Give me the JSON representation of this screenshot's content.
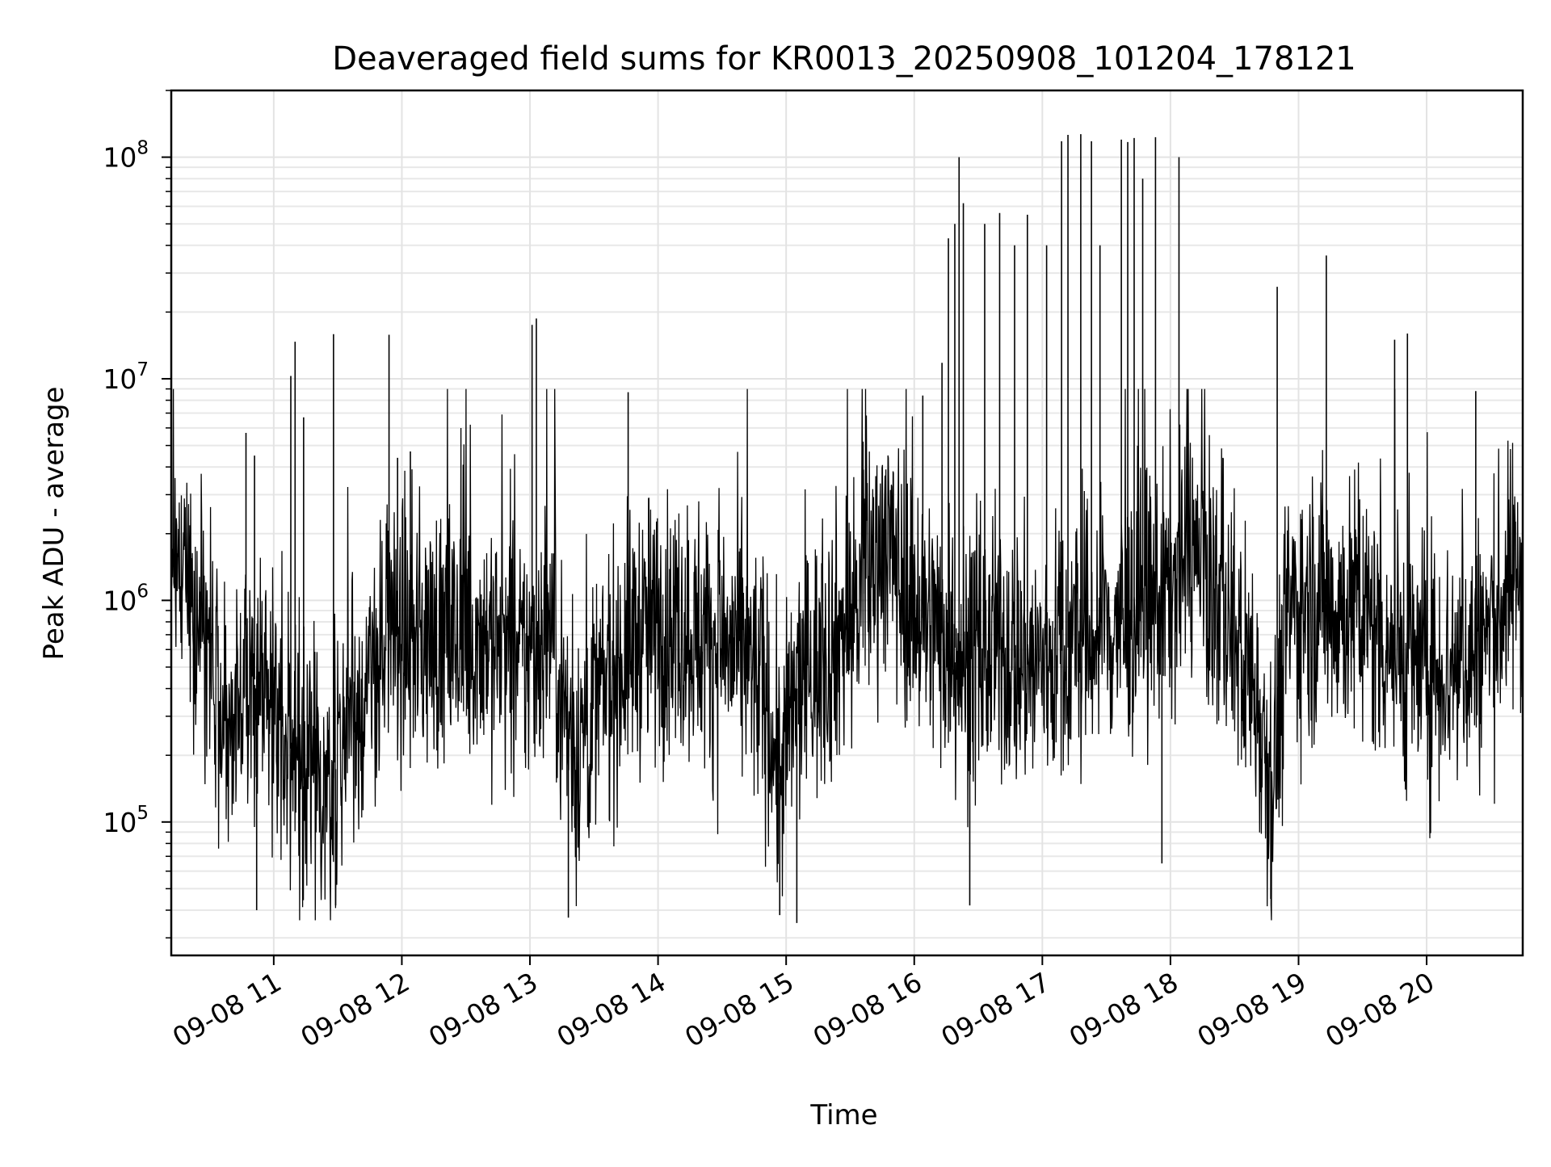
{
  "chart_data": {
    "type": "line",
    "title": "Deaveraged field sums for KR0013_20250908_101204_178121",
    "xlabel": "Time",
    "ylabel": "Peak ADU - average",
    "yscale": "log",
    "ylim": [
      25000,
      200000000
    ],
    "xlim": [
      "2025-09-08 10:12",
      "2025-09-08 20:45"
    ],
    "grid": true,
    "legend": "none",
    "line_color": "#000000",
    "x_ticks": [
      "09-08 11",
      "09-08 12",
      "09-08 13",
      "09-08 14",
      "09-08 15",
      "09-08 16",
      "09-08 17",
      "09-08 18",
      "09-08 19",
      "09-08 20"
    ],
    "y_ticks": [
      {
        "base": "10",
        "exp": "5"
      },
      {
        "base": "10",
        "exp": "6"
      },
      {
        "base": "10",
        "exp": "7"
      },
      {
        "base": "10",
        "exp": "8"
      }
    ],
    "series": [
      {
        "x": [
          "2025-09-08 10:12",
          "2025-09-08 10:20",
          "2025-09-08 10:30",
          "2025-09-08 10:40",
          "2025-09-08 10:48",
          "2025-09-08 10:55",
          "2025-09-08 11:05",
          "2025-09-08 11:15",
          "2025-09-08 11:25",
          "2025-09-08 11:35",
          "2025-09-08 11:45",
          "2025-09-08 11:55",
          "2025-09-08 12:10",
          "2025-09-08 12:25",
          "2025-09-08 12:40",
          "2025-09-08 12:55",
          "2025-09-08 13:10",
          "2025-09-08 13:20",
          "2025-09-08 13:35",
          "2025-09-08 13:50",
          "2025-09-08 14:05",
          "2025-09-08 14:20",
          "2025-09-08 14:35",
          "2025-09-08 14:50",
          "2025-09-08 14:57",
          "2025-09-08 15:05",
          "2025-09-08 15:20",
          "2025-09-08 15:35",
          "2025-09-08 15:45",
          "2025-09-08 15:55",
          "2025-09-08 16:05",
          "2025-09-08 16:15",
          "2025-09-08 16:25",
          "2025-09-08 16:40",
          "2025-09-08 16:55",
          "2025-09-08 17:10",
          "2025-09-08 17:25",
          "2025-09-08 17:40",
          "2025-09-08 17:55",
          "2025-09-08 18:10",
          "2025-09-08 18:25",
          "2025-09-08 18:40",
          "2025-09-08 18:48",
          "2025-09-08 18:55",
          "2025-09-08 19:10",
          "2025-09-08 19:25",
          "2025-09-08 19:40",
          "2025-09-08 19:55",
          "2025-09-08 20:10",
          "2025-09-08 20:25",
          "2025-09-08 20:40",
          "2025-09-08 20:45"
        ],
        "y": [
          1800000,
          1400000,
          600000,
          200000,
          400000,
          500000,
          250000,
          150000,
          120000,
          300000,
          400000,
          700000,
          700000,
          650000,
          700000,
          500000,
          800000,
          200000,
          400000,
          700000,
          800000,
          700000,
          600000,
          400000,
          150000,
          400000,
          600000,
          1000000,
          2000000,
          1200000,
          800000,
          700000,
          500000,
          600000,
          500000,
          600000,
          700000,
          800000,
          1000000,
          1600000,
          900000,
          400000,
          150000,
          900000,
          1000000,
          900000,
          700000,
          500000,
          500000,
          600000,
          1200000,
          1500000
        ]
      }
    ],
    "spikes": [
      {
        "x": "2025-09-08 10:47",
        "y": 5700000
      },
      {
        "x": "2025-09-08 10:51",
        "y": 4500000
      },
      {
        "x": "2025-09-08 11:08",
        "y": 10300000
      },
      {
        "x": "2025-09-08 11:10",
        "y": 14700000
      },
      {
        "x": "2025-09-08 11:14",
        "y": 6700000
      },
      {
        "x": "2025-09-08 11:28",
        "y": 15900000
      },
      {
        "x": "2025-09-08 11:54",
        "y": 15800000
      },
      {
        "x": "2025-09-08 11:58",
        "y": 4400000
      },
      {
        "x": "2025-09-08 12:04",
        "y": 4700000
      },
      {
        "x": "2025-09-08 13:01",
        "y": 17500000
      },
      {
        "x": "2025-09-08 13:03",
        "y": 18700000
      },
      {
        "x": "2025-09-08 13:46",
        "y": 8700000
      },
      {
        "x": "2025-09-08 15:36",
        "y": 5200000
      },
      {
        "x": "2025-09-08 16:04",
        "y": 8400000
      },
      {
        "x": "2025-09-08 16:13",
        "y": 11800000
      },
      {
        "x": "2025-09-08 16:16",
        "y": 43000000
      },
      {
        "x": "2025-09-08 16:19",
        "y": 50000000
      },
      {
        "x": "2025-09-08 16:21",
        "y": 100000000
      },
      {
        "x": "2025-09-08 16:23",
        "y": 62000000
      },
      {
        "x": "2025-09-08 16:33",
        "y": 50000000
      },
      {
        "x": "2025-09-08 16:40",
        "y": 56000000
      },
      {
        "x": "2025-09-08 16:47",
        "y": 40000000
      },
      {
        "x": "2025-09-08 16:53",
        "y": 55000000
      },
      {
        "x": "2025-09-08 17:02",
        "y": 40000000
      },
      {
        "x": "2025-09-08 17:09",
        "y": 118000000
      },
      {
        "x": "2025-09-08 17:12",
        "y": 126000000
      },
      {
        "x": "2025-09-08 17:18",
        "y": 127000000
      },
      {
        "x": "2025-09-08 17:23",
        "y": 118000000
      },
      {
        "x": "2025-09-08 17:27",
        "y": 40000000
      },
      {
        "x": "2025-09-08 17:37",
        "y": 120000000
      },
      {
        "x": "2025-09-08 17:40",
        "y": 117000000
      },
      {
        "x": "2025-09-08 17:43",
        "y": 122000000
      },
      {
        "x": "2025-09-08 17:47",
        "y": 80000000
      },
      {
        "x": "2025-09-08 17:53",
        "y": 123000000
      },
      {
        "x": "2025-09-08 18:04",
        "y": 100000000
      },
      {
        "x": "2025-09-08 18:50",
        "y": 26000000
      },
      {
        "x": "2025-09-08 19:13",
        "y": 36000000
      },
      {
        "x": "2025-09-08 19:45",
        "y": 15000000
      },
      {
        "x": "2025-09-08 19:51",
        "y": 16000000
      },
      {
        "x": "2025-09-08 20:23",
        "y": 8800000
      }
    ],
    "dips": [
      {
        "x": "2025-09-08 10:52",
        "y": 40000
      },
      {
        "x": "2025-09-08 11:29",
        "y": 42000
      },
      {
        "x": "2025-09-08 13:18",
        "y": 37000
      },
      {
        "x": "2025-09-08 14:57",
        "y": 38000
      },
      {
        "x": "2025-09-08 15:05",
        "y": 35000
      },
      {
        "x": "2025-09-08 16:26",
        "y": 42000
      },
      {
        "x": "2025-09-08 17:56",
        "y": 65000
      },
      {
        "x": "2025-09-08 18:47",
        "y": 45000
      }
    ]
  }
}
